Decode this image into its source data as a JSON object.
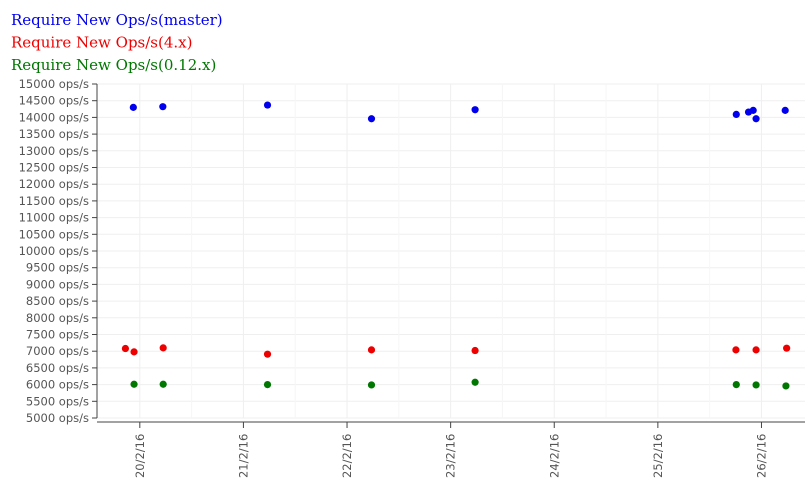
{
  "chart_data": {
    "type": "scatter",
    "legend_placement": "top-left",
    "grid": true,
    "ylim": [
      5000,
      15000
    ],
    "y_ticks": [
      "5000 ops/s",
      "5500 ops/s",
      "6000 ops/s",
      "6500 ops/s",
      "7000 ops/s",
      "7500 ops/s",
      "8000 ops/s",
      "8500 ops/s",
      "9000 ops/s",
      "9500 ops/s",
      "10000 ops/s",
      "10500 ops/s",
      "11000 ops/s",
      "11500 ops/s",
      "12000 ops/s",
      "12500 ops/s",
      "13000 ops/s",
      "13500 ops/s",
      "14000 ops/s",
      "14500 ops/s",
      "15000 ops/s"
    ],
    "x_ticks": [
      "20/2/16",
      "21/2/16",
      "22/2/16",
      "23/2/16",
      "24/2/16",
      "25/2/16",
      "26/2/16"
    ],
    "xlim": [
      "2016-02-19 14:05",
      "2016-02-26 10:05"
    ],
    "series": [
      {
        "name": "Require New Ops/s(master)",
        "color": "#0000ee",
        "points": [
          {
            "x": "2016-02-19 22:30",
            "y": 14300
          },
          {
            "x": "2016-02-20 05:20",
            "y": 14320
          },
          {
            "x": "2016-02-21 05:35",
            "y": 14370
          },
          {
            "x": "2016-02-22 05:40",
            "y": 13960
          },
          {
            "x": "2016-02-23 05:40",
            "y": 14230
          },
          {
            "x": "2016-02-25 18:10",
            "y": 14090
          },
          {
            "x": "2016-02-25 21:00",
            "y": 14160
          },
          {
            "x": "2016-02-25 22:05",
            "y": 14210
          },
          {
            "x": "2016-02-25 22:45",
            "y": 13960
          },
          {
            "x": "2016-02-26 05:30",
            "y": 14210
          }
        ]
      },
      {
        "name": "Require New Ops/s(4.x)",
        "color": "#ee0000",
        "points": [
          {
            "x": "2016-02-19 20:40",
            "y": 7080
          },
          {
            "x": "2016-02-19 22:40",
            "y": 6980
          },
          {
            "x": "2016-02-20 05:25",
            "y": 7100
          },
          {
            "x": "2016-02-21 05:35",
            "y": 6910
          },
          {
            "x": "2016-02-22 05:40",
            "y": 7040
          },
          {
            "x": "2016-02-23 05:40",
            "y": 7020
          },
          {
            "x": "2016-02-25 18:05",
            "y": 7040
          },
          {
            "x": "2016-02-25 22:45",
            "y": 7040
          },
          {
            "x": "2016-02-26 05:50",
            "y": 7090
          }
        ]
      },
      {
        "name": "Require New Ops/s(0.12.x)",
        "color": "#007700",
        "points": [
          {
            "x": "2016-02-19 22:40",
            "y": 6010
          },
          {
            "x": "2016-02-20 05:25",
            "y": 6010
          },
          {
            "x": "2016-02-21 05:35",
            "y": 6000
          },
          {
            "x": "2016-02-22 05:40",
            "y": 5990
          },
          {
            "x": "2016-02-23 05:40",
            "y": 6070
          },
          {
            "x": "2016-02-25 18:10",
            "y": 6000
          },
          {
            "x": "2016-02-25 22:45",
            "y": 5990
          },
          {
            "x": "2016-02-26 05:40",
            "y": 5960
          }
        ]
      }
    ]
  }
}
